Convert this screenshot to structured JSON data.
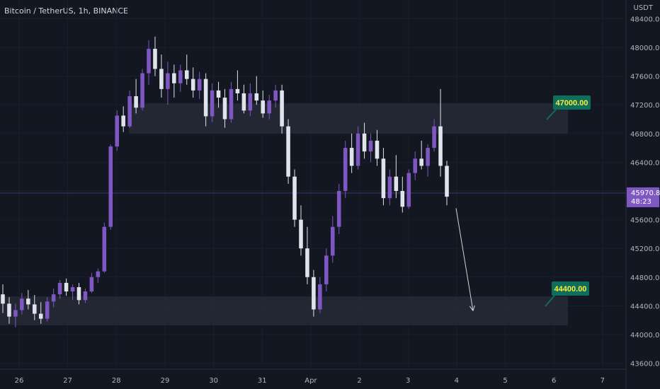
{
  "header": {
    "symbol_title": "Bitcoin / TetherUS, 1h, BINANCE",
    "axis_unit": "USDT"
  },
  "price_axis": {
    "ticks": [
      "48400.00",
      "48000.00",
      "47600.00",
      "47200.00",
      "46800.00",
      "46400.00",
      "46000.00",
      "45600.00",
      "45200.00",
      "44800.00",
      "44400.00",
      "44000.00",
      "43600.00"
    ]
  },
  "current_price": {
    "value": "45970.82",
    "countdown": "48:23",
    "color": "#7e57c2"
  },
  "colors": {
    "background": "#131722",
    "bull": "#7e57c2",
    "bear": "#e0e3eb",
    "zone": "#2a2e39",
    "label_bg": "#0d6e5c",
    "label_text": "#ffeb3b"
  },
  "annotations": [
    {
      "label": "47000.00"
    },
    {
      "label": "44400.00"
    }
  ],
  "chart_data": {
    "type": "candlestick",
    "x_ticks": [
      "26",
      "27",
      "28",
      "29",
      "30",
      "31",
      "Apr",
      "2",
      "3",
      "4",
      "5",
      "6",
      "7"
    ],
    "ylim": [
      43500,
      48500
    ],
    "zones": [
      {
        "low": 46800,
        "high": 47220
      },
      {
        "low": 44130,
        "high": 44530
      }
    ],
    "target_arrow": {
      "from": 45760,
      "to": 44330
    },
    "current_price": 45970.82,
    "candles": [
      {
        "o": 44560,
        "h": 44700,
        "l": 44300,
        "c": 44430
      },
      {
        "o": 44430,
        "h": 44520,
        "l": 44150,
        "c": 44250
      },
      {
        "o": 44250,
        "h": 44430,
        "l": 44100,
        "c": 44340
      },
      {
        "o": 44340,
        "h": 44580,
        "l": 44280,
        "c": 44500
      },
      {
        "o": 44500,
        "h": 44620,
        "l": 44350,
        "c": 44420
      },
      {
        "o": 44420,
        "h": 44550,
        "l": 44200,
        "c": 44290
      },
      {
        "o": 44290,
        "h": 44450,
        "l": 44150,
        "c": 44220
      },
      {
        "o": 44220,
        "h": 44520,
        "l": 44180,
        "c": 44460
      },
      {
        "o": 44460,
        "h": 44640,
        "l": 44380,
        "c": 44560
      },
      {
        "o": 44560,
        "h": 44760,
        "l": 44500,
        "c": 44720
      },
      {
        "o": 44720,
        "h": 44780,
        "l": 44540,
        "c": 44600
      },
      {
        "o": 44600,
        "h": 44700,
        "l": 44480,
        "c": 44660
      },
      {
        "o": 44660,
        "h": 44720,
        "l": 44420,
        "c": 44480
      },
      {
        "o": 44480,
        "h": 44640,
        "l": 44440,
        "c": 44600
      },
      {
        "o": 44600,
        "h": 44860,
        "l": 44580,
        "c": 44800
      },
      {
        "o": 44800,
        "h": 44920,
        "l": 44720,
        "c": 44880
      },
      {
        "o": 44880,
        "h": 45560,
        "l": 44860,
        "c": 45500
      },
      {
        "o": 45500,
        "h": 46650,
        "l": 45460,
        "c": 46620
      },
      {
        "o": 46620,
        "h": 47120,
        "l": 46560,
        "c": 47050
      },
      {
        "o": 47050,
        "h": 47180,
        "l": 46820,
        "c": 46900
      },
      {
        "o": 46900,
        "h": 47400,
        "l": 46880,
        "c": 47320
      },
      {
        "o": 47320,
        "h": 47560,
        "l": 47080,
        "c": 47160
      },
      {
        "o": 47160,
        "h": 47700,
        "l": 47120,
        "c": 47640
      },
      {
        "o": 47640,
        "h": 48100,
        "l": 47480,
        "c": 47980
      },
      {
        "o": 47980,
        "h": 48150,
        "l": 47600,
        "c": 47700
      },
      {
        "o": 47700,
        "h": 47900,
        "l": 47300,
        "c": 47420
      },
      {
        "o": 47420,
        "h": 47800,
        "l": 47200,
        "c": 47640
      },
      {
        "o": 47640,
        "h": 47760,
        "l": 47300,
        "c": 47500
      },
      {
        "o": 47500,
        "h": 47760,
        "l": 47380,
        "c": 47680
      },
      {
        "o": 47680,
        "h": 47900,
        "l": 47480,
        "c": 47560
      },
      {
        "o": 47560,
        "h": 47720,
        "l": 47300,
        "c": 47400
      },
      {
        "o": 47400,
        "h": 47660,
        "l": 47280,
        "c": 47560
      },
      {
        "o": 47560,
        "h": 47640,
        "l": 46900,
        "c": 47040
      },
      {
        "o": 47040,
        "h": 47500,
        "l": 46960,
        "c": 47400
      },
      {
        "o": 47400,
        "h": 47520,
        "l": 47160,
        "c": 47300
      },
      {
        "o": 47300,
        "h": 47420,
        "l": 46880,
        "c": 47000
      },
      {
        "o": 47000,
        "h": 47520,
        "l": 46950,
        "c": 47420
      },
      {
        "o": 47420,
        "h": 47680,
        "l": 47260,
        "c": 47360
      },
      {
        "o": 47360,
        "h": 47480,
        "l": 47080,
        "c": 47120
      },
      {
        "o": 47120,
        "h": 47500,
        "l": 47040,
        "c": 47360
      },
      {
        "o": 47360,
        "h": 47600,
        "l": 47200,
        "c": 47260
      },
      {
        "o": 47260,
        "h": 47400,
        "l": 47020,
        "c": 47080
      },
      {
        "o": 47080,
        "h": 47340,
        "l": 47000,
        "c": 47260
      },
      {
        "o": 47260,
        "h": 47480,
        "l": 47160,
        "c": 47400
      },
      {
        "o": 47400,
        "h": 47480,
        "l": 46800,
        "c": 46900
      },
      {
        "o": 46900,
        "h": 47000,
        "l": 46100,
        "c": 46200
      },
      {
        "o": 46200,
        "h": 46300,
        "l": 45500,
        "c": 45600
      },
      {
        "o": 45600,
        "h": 45800,
        "l": 45100,
        "c": 45200
      },
      {
        "o": 45200,
        "h": 45500,
        "l": 44700,
        "c": 44800
      },
      {
        "o": 44800,
        "h": 44900,
        "l": 44250,
        "c": 44350
      },
      {
        "o": 44350,
        "h": 44800,
        "l": 44300,
        "c": 44700
      },
      {
        "o": 44700,
        "h": 45200,
        "l": 44600,
        "c": 45100
      },
      {
        "o": 45100,
        "h": 45650,
        "l": 45000,
        "c": 45500
      },
      {
        "o": 45500,
        "h": 46100,
        "l": 45400,
        "c": 46000
      },
      {
        "o": 46000,
        "h": 46700,
        "l": 45900,
        "c": 46600
      },
      {
        "o": 46600,
        "h": 46800,
        "l": 46250,
        "c": 46350
      },
      {
        "o": 46350,
        "h": 46900,
        "l": 46300,
        "c": 46800
      },
      {
        "o": 46800,
        "h": 46950,
        "l": 46450,
        "c": 46550
      },
      {
        "o": 46550,
        "h": 46800,
        "l": 46400,
        "c": 46700
      },
      {
        "o": 46700,
        "h": 46850,
        "l": 46350,
        "c": 46450
      },
      {
        "o": 46450,
        "h": 46600,
        "l": 45800,
        "c": 45900
      },
      {
        "o": 45900,
        "h": 46300,
        "l": 45800,
        "c": 46200
      },
      {
        "o": 46200,
        "h": 46500,
        "l": 45900,
        "c": 46000
      },
      {
        "o": 46000,
        "h": 46200,
        "l": 45700,
        "c": 45780
      },
      {
        "o": 45780,
        "h": 46300,
        "l": 45750,
        "c": 46250
      },
      {
        "o": 46250,
        "h": 46550,
        "l": 46150,
        "c": 46450
      },
      {
        "o": 46450,
        "h": 46700,
        "l": 46300,
        "c": 46350
      },
      {
        "o": 46350,
        "h": 46650,
        "l": 46200,
        "c": 46600
      },
      {
        "o": 46600,
        "h": 47000,
        "l": 46550,
        "c": 46900
      },
      {
        "o": 46900,
        "h": 47420,
        "l": 46200,
        "c": 46350
      },
      {
        "o": 46350,
        "h": 46420,
        "l": 45800,
        "c": 45920
      }
    ]
  }
}
